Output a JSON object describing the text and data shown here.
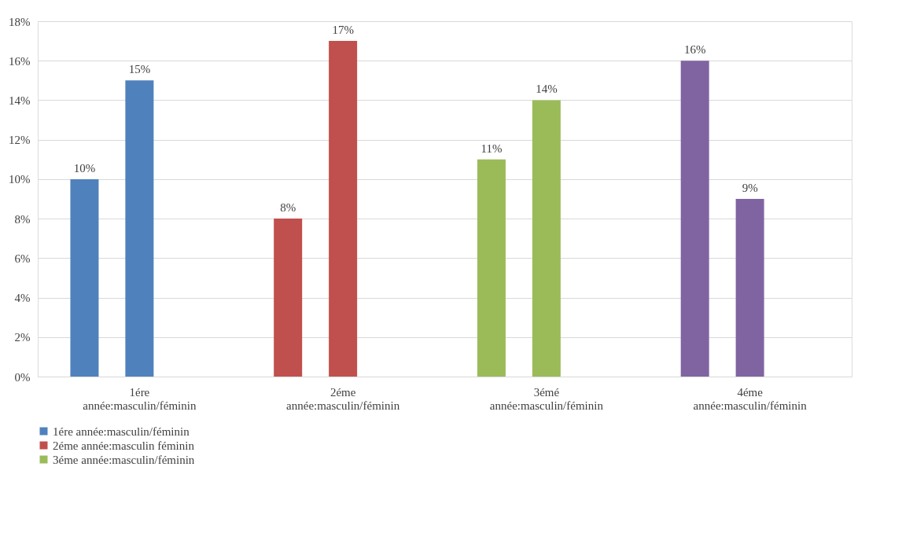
{
  "chart_data": {
    "type": "bar",
    "categories": [
      "1ére année:masculin/féminin",
      "2éme année:masculin/féminin",
      "3émé année:masculin/féminin",
      "4éme année:masculin/féminin"
    ],
    "series": [
      {
        "name": "1ére année:masculin/féminin",
        "color": "#4f81bd",
        "x": [
          "1ére année:masculin/féminin",
          "1ére année:masculin/féminin"
        ],
        "values": [
          10,
          15
        ],
        "value_labels": [
          "10%",
          "15%"
        ]
      },
      {
        "name": "2éme année:masculin féminin",
        "color": "#c0504d",
        "x": [
          "2éme année:masculin/féminin",
          "2éme année:masculin/féminin"
        ],
        "values": [
          8,
          17
        ],
        "value_labels": [
          "8%",
          "17%"
        ]
      },
      {
        "name": "3éme année:masculin/féminin",
        "color": "#9bbb59",
        "x": [
          "3émé année:masculin/féminin",
          "3émé année:masculin/féminin"
        ],
        "values": [
          11,
          14
        ],
        "value_labels": [
          "11%",
          "14%"
        ]
      },
      {
        "color": "#8064a2",
        "x": [
          "4éme année:masculin/féminin",
          "4éme année:masculin/féminin"
        ],
        "values": [
          16,
          9
        ],
        "value_labels": [
          "16%",
          "9%"
        ]
      }
    ],
    "ylim": [
      0,
      18
    ],
    "yticks": [
      {
        "value": 0,
        "label": "0%"
      },
      {
        "value": 2,
        "label": "2%"
      },
      {
        "value": 4,
        "label": "4%"
      },
      {
        "value": 6,
        "label": "6%"
      },
      {
        "value": 8,
        "label": "8%"
      },
      {
        "value": 10,
        "label": "10%"
      },
      {
        "value": 12,
        "label": "12%"
      },
      {
        "value": 14,
        "label": "14%"
      },
      {
        "value": 16,
        "label": "16%"
      },
      {
        "value": 18,
        "label": "18%"
      }
    ],
    "grid": "y",
    "legend": "bottom"
  }
}
